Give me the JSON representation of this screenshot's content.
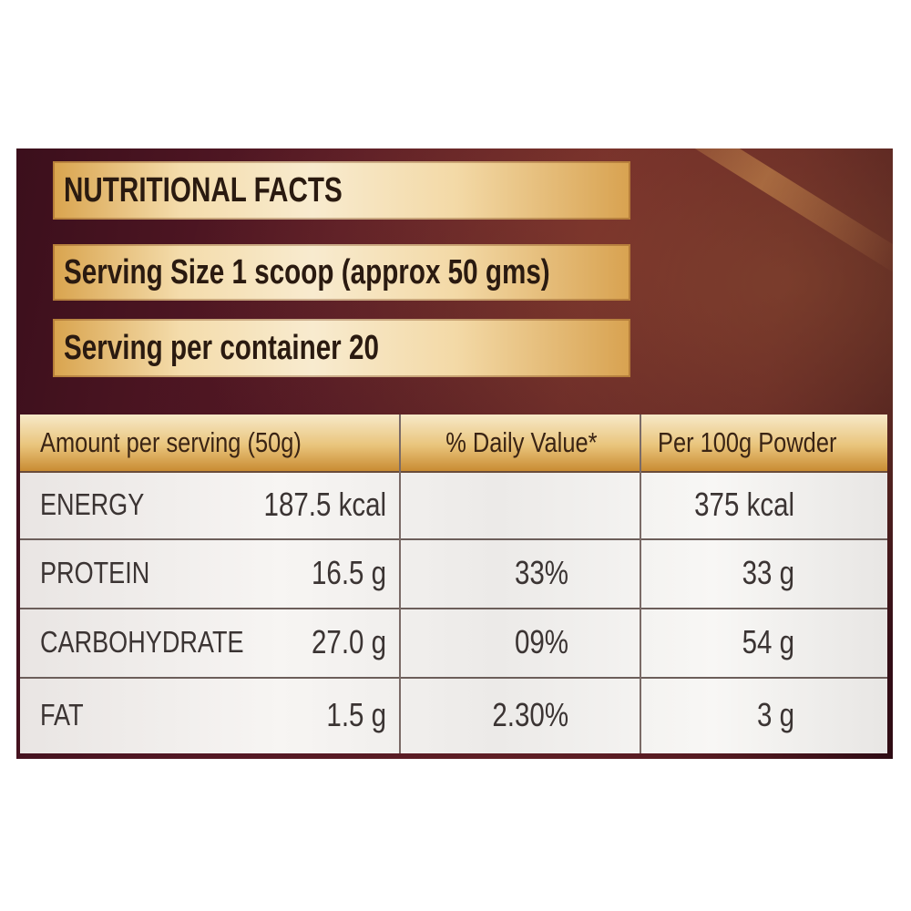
{
  "banners": {
    "title": "NUTRITIONAL FACTS",
    "serving_size": "Serving Size 1 scoop (approx 50 gms)",
    "servings_per_container": "Serving per container 20"
  },
  "table": {
    "headers": {
      "amount": "Amount per serving (50g)",
      "daily_value": "% Daily Value*",
      "per_100g": "Per 100g Powder"
    },
    "rows": [
      {
        "nutrient": "ENERGY",
        "amount": "187.5 kcal",
        "daily_value": "",
        "per_100g": "375 kcal"
      },
      {
        "nutrient": "PROTEIN",
        "amount": "16.5 g",
        "daily_value": "33%",
        "per_100g": "33 g"
      },
      {
        "nutrient": "CARBOHYDRATE",
        "amount": "27.0 g",
        "daily_value": "09%",
        "per_100g": "54 g"
      },
      {
        "nutrient": "FAT",
        "amount": "1.5 g",
        "daily_value": "2.30%",
        "per_100g": "3 g"
      }
    ]
  },
  "colors": {
    "background": "#5a1a26",
    "banner_gold": "#e9c47b",
    "table_bg": "#f3f1ef",
    "text_dark": "#3b3433"
  }
}
